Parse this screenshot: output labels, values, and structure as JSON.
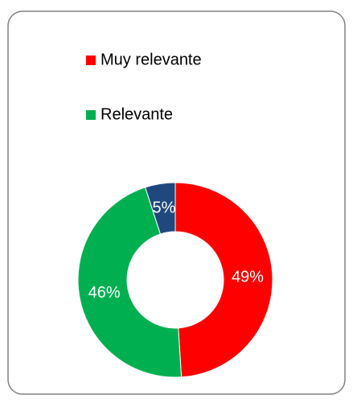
{
  "chart_data": {
    "type": "donut",
    "categories": [
      "Muy relevante",
      "Relevante",
      null
    ],
    "values": [
      49,
      46,
      5
    ],
    "value_labels": [
      "49%",
      "46%",
      "5%"
    ],
    "colors": [
      "#ff0000",
      "#00b050",
      "#1f497d"
    ],
    "legend": "top-left"
  }
}
